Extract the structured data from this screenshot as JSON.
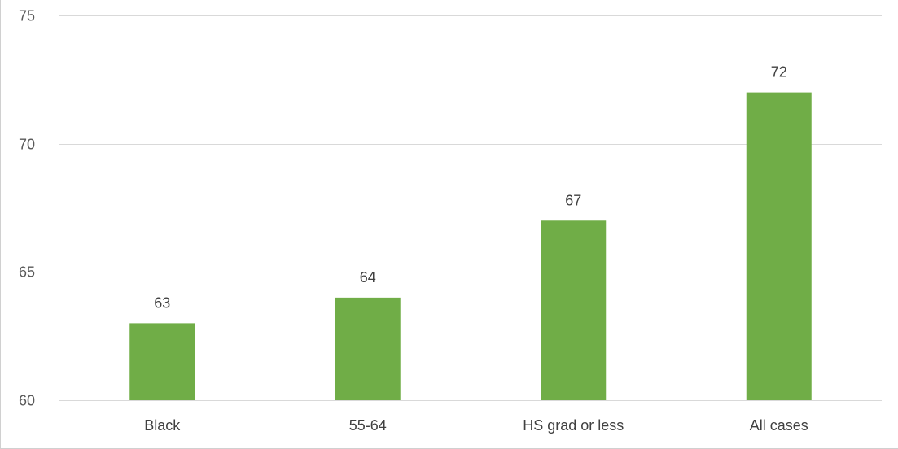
{
  "chart_data": {
    "type": "bar",
    "categories": [
      "Black",
      "55-64",
      "HS grad or less",
      "All cases"
    ],
    "values": [
      63,
      64,
      67,
      72
    ],
    "title": "",
    "xlabel": "",
    "ylabel": "",
    "ylim": [
      60,
      75
    ],
    "yticks": [
      60,
      65,
      70,
      75
    ],
    "grid": true,
    "legend": "none",
    "bar_color": "#70ad47",
    "grid_color": "#d9d9d9",
    "data_labels": [
      "63",
      "64",
      "67",
      "72"
    ],
    "ytick_labels": [
      "60",
      "65",
      "70",
      "75"
    ]
  }
}
